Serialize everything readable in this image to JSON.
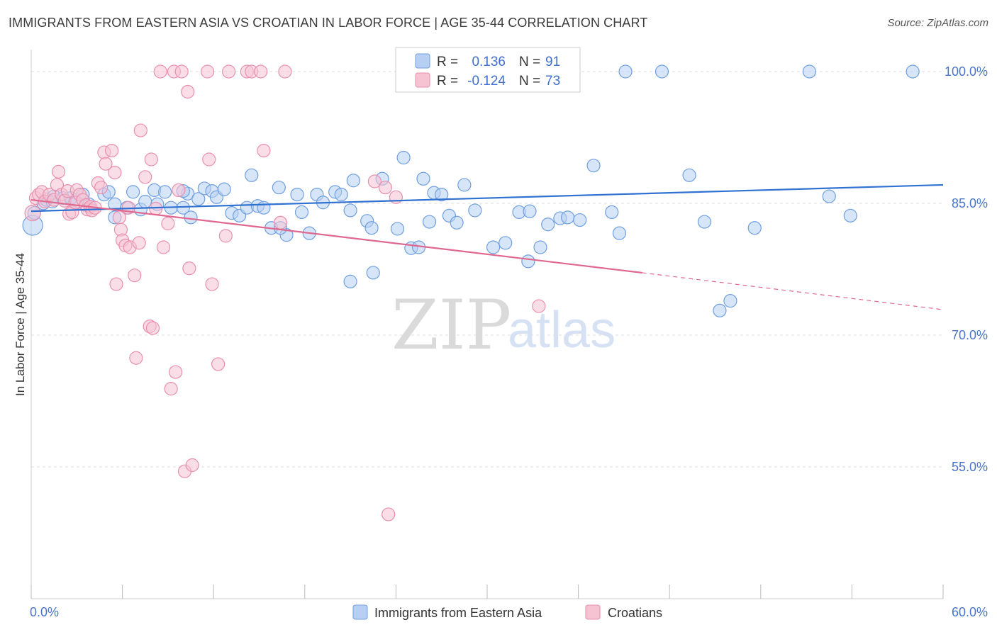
{
  "title": "IMMIGRANTS FROM EASTERN ASIA VS CROATIAN IN LABOR FORCE | AGE 35-44 CORRELATION CHART",
  "source": "Source: ZipAtlas.com",
  "watermark": {
    "zip": "ZIP",
    "atlas": "atlas"
  },
  "colors": {
    "blue": "#6f9fe0",
    "blue_fill": "#b7cff2",
    "blue_line": "#2f72d2",
    "pink": "#e98fac",
    "pink_fill": "#f6c3d3",
    "pink_line": "#e0688f",
    "grid": "#dddddd",
    "tick_label": "#4a74c9"
  },
  "legend": {
    "rows": [
      {
        "r_label": "R =",
        "r_value": "0.136",
        "n_label": "N =",
        "n_value": "91"
      },
      {
        "r_label": "R =",
        "r_value": "-0.124",
        "n_label": "N =",
        "n_value": "73"
      }
    ],
    "bottom": [
      "Immigrants from Eastern Asia",
      "Croatians"
    ]
  },
  "chart_data": {
    "type": "scatter",
    "xlabel": "",
    "ylabel": "In Labor Force | Age 35-44",
    "xlim": [
      0,
      60
    ],
    "ylim": [
      40,
      102.5
    ],
    "x_tick_labels": [
      {
        "value": 0,
        "label": "0.0%"
      },
      {
        "value": 60,
        "label": "60.0%"
      }
    ],
    "y_tick_labels": [
      {
        "value": 55,
        "label": "55.0%"
      },
      {
        "value": 70,
        "label": "70.0%"
      },
      {
        "value": 85,
        "label": "85.0%"
      },
      {
        "value": 100,
        "label": "100.0%"
      }
    ],
    "grid_y": [
      55,
      70,
      85,
      100
    ],
    "legend_position": "top-center",
    "series": [
      {
        "name": "Immigrants from Eastern Asia",
        "trend": {
          "x0": 0,
          "y0": 84.1,
          "x1": 60,
          "y1": 87.1
        },
        "points": [
          [
            0.1,
            82.5
          ],
          [
            0.2,
            83.9
          ],
          [
            0.8,
            85.0
          ],
          [
            1.0,
            85.4
          ],
          [
            1.4,
            85.2
          ],
          [
            1.5,
            85.8
          ],
          [
            2.1,
            85.6
          ],
          [
            2.6,
            85.6
          ],
          [
            3.0,
            85.1
          ],
          [
            3.4,
            86.0
          ],
          [
            3.8,
            84.9
          ],
          [
            4.8,
            86.0
          ],
          [
            5.1,
            86.3
          ],
          [
            5.5,
            84.9
          ],
          [
            5.5,
            83.4
          ],
          [
            6.3,
            84.5
          ],
          [
            6.7,
            86.3
          ],
          [
            7.2,
            84.3
          ],
          [
            7.5,
            85.2
          ],
          [
            8.1,
            86.5
          ],
          [
            8.3,
            84.9
          ],
          [
            8.8,
            86.3
          ],
          [
            9.2,
            84.5
          ],
          [
            10.0,
            84.5
          ],
          [
            10.5,
            83.4
          ],
          [
            10.3,
            86.1
          ],
          [
            11.0,
            85.5
          ],
          [
            11.4,
            86.7
          ],
          [
            11.9,
            86.4
          ],
          [
            12.2,
            85.7
          ],
          [
            12.7,
            86.6
          ],
          [
            13.2,
            83.9
          ],
          [
            13.7,
            83.6
          ],
          [
            14.2,
            84.5
          ],
          [
            14.5,
            88.2
          ],
          [
            14.9,
            84.7
          ],
          [
            15.3,
            84.5
          ],
          [
            15.8,
            82.2
          ],
          [
            16.3,
            86.8
          ],
          [
            16.8,
            81.4
          ],
          [
            17.5,
            86.0
          ],
          [
            17.8,
            84.0
          ],
          [
            18.3,
            81.6
          ],
          [
            18.8,
            86.0
          ],
          [
            19.2,
            85.1
          ],
          [
            20.0,
            86.3
          ],
          [
            21.0,
            84.2
          ],
          [
            21.2,
            87.6
          ],
          [
            22.5,
            77.1
          ],
          [
            21.0,
            76.1
          ],
          [
            22.1,
            83.0
          ],
          [
            22.4,
            82.2
          ],
          [
            23.1,
            87.8
          ],
          [
            24.5,
            90.2
          ],
          [
            25.0,
            79.9
          ],
          [
            25.5,
            80.0
          ],
          [
            25.8,
            87.8
          ],
          [
            26.2,
            82.9
          ],
          [
            26.5,
            86.2
          ],
          [
            27.0,
            86.0
          ],
          [
            27.5,
            83.6
          ],
          [
            28.0,
            82.8
          ],
          [
            28.5,
            87.1
          ],
          [
            29.2,
            84.2
          ],
          [
            30.4,
            80.0
          ],
          [
            31.2,
            80.5
          ],
          [
            32.1,
            84.0
          ],
          [
            32.7,
            78.4
          ],
          [
            32.8,
            84.1
          ],
          [
            33.5,
            80.0
          ],
          [
            34.0,
            82.6
          ],
          [
            34.8,
            83.3
          ],
          [
            35.3,
            83.4
          ],
          [
            36.1,
            83.1
          ],
          [
            37.0,
            89.3
          ],
          [
            38.2,
            84.0
          ],
          [
            38.7,
            81.6
          ],
          [
            39.1,
            100.0
          ],
          [
            41.5,
            100.0
          ],
          [
            43.3,
            88.2
          ],
          [
            44.3,
            82.9
          ],
          [
            45.3,
            72.8
          ],
          [
            46.0,
            73.9
          ],
          [
            47.6,
            82.2
          ],
          [
            51.2,
            100.0
          ],
          [
            52.5,
            85.8
          ],
          [
            53.9,
            83.6
          ],
          [
            58.0,
            100.0
          ],
          [
            10.0,
            86.4
          ],
          [
            16.4,
            82.2
          ],
          [
            20.4,
            86.0
          ],
          [
            24.1,
            82.1
          ]
        ]
      },
      {
        "name": "Croatians",
        "trend": {
          "x0": 0,
          "y0": 85.4,
          "x1": 40.2,
          "y1": 77.1,
          "dash_x1": 60,
          "dash_y1": 72.9
        },
        "points": [
          [
            0.1,
            83.9
          ],
          [
            0.3,
            85.6
          ],
          [
            0.5,
            86.0
          ],
          [
            0.7,
            86.3
          ],
          [
            0.9,
            85.2
          ],
          [
            1.2,
            86.0
          ],
          [
            1.5,
            85.4
          ],
          [
            1.7,
            87.1
          ],
          [
            1.8,
            88.6
          ],
          [
            2.0,
            86.0
          ],
          [
            2.2,
            85.3
          ],
          [
            2.4,
            86.4
          ],
          [
            2.5,
            83.8
          ],
          [
            2.7,
            84.0
          ],
          [
            2.9,
            85.1
          ],
          [
            3.0,
            86.5
          ],
          [
            3.2,
            86.0
          ],
          [
            3.4,
            85.4
          ],
          [
            3.6,
            84.8
          ],
          [
            3.7,
            84.3
          ],
          [
            3.9,
            84.6
          ],
          [
            4.0,
            84.2
          ],
          [
            4.2,
            84.5
          ],
          [
            4.4,
            87.3
          ],
          [
            4.6,
            86.8
          ],
          [
            4.8,
            90.8
          ],
          [
            4.9,
            89.5
          ],
          [
            5.3,
            91.0
          ],
          [
            5.5,
            88.5
          ],
          [
            5.6,
            75.8
          ],
          [
            5.8,
            83.4
          ],
          [
            5.9,
            82.0
          ],
          [
            6.0,
            80.8
          ],
          [
            6.2,
            80.2
          ],
          [
            6.4,
            84.5
          ],
          [
            6.5,
            80.0
          ],
          [
            6.8,
            76.8
          ],
          [
            6.9,
            67.4
          ],
          [
            7.1,
            80.5
          ],
          [
            7.2,
            93.3
          ],
          [
            7.5,
            88.0
          ],
          [
            7.8,
            71.0
          ],
          [
            7.9,
            90.0
          ],
          [
            8.0,
            70.8
          ],
          [
            8.2,
            84.4
          ],
          [
            8.5,
            100.0
          ],
          [
            8.7,
            80.0
          ],
          [
            9.0,
            82.7
          ],
          [
            9.2,
            63.9
          ],
          [
            9.4,
            100.0
          ],
          [
            9.5,
            65.8
          ],
          [
            9.7,
            86.5
          ],
          [
            9.9,
            100.0
          ],
          [
            10.1,
            54.5
          ],
          [
            10.3,
            97.7
          ],
          [
            10.4,
            77.6
          ],
          [
            10.6,
            55.2
          ],
          [
            11.6,
            100.0
          ],
          [
            11.7,
            90.0
          ],
          [
            11.9,
            75.8
          ],
          [
            12.3,
            66.7
          ],
          [
            12.8,
            81.3
          ],
          [
            13.0,
            100.0
          ],
          [
            14.2,
            100.0
          ],
          [
            14.5,
            100.0
          ],
          [
            15.1,
            100.0
          ],
          [
            15.3,
            91.0
          ],
          [
            16.4,
            82.8
          ],
          [
            16.7,
            100.0
          ],
          [
            22.6,
            87.5
          ],
          [
            23.3,
            86.8
          ],
          [
            23.5,
            49.6
          ],
          [
            24.0,
            85.7
          ],
          [
            33.4,
            73.3
          ]
        ]
      }
    ]
  }
}
